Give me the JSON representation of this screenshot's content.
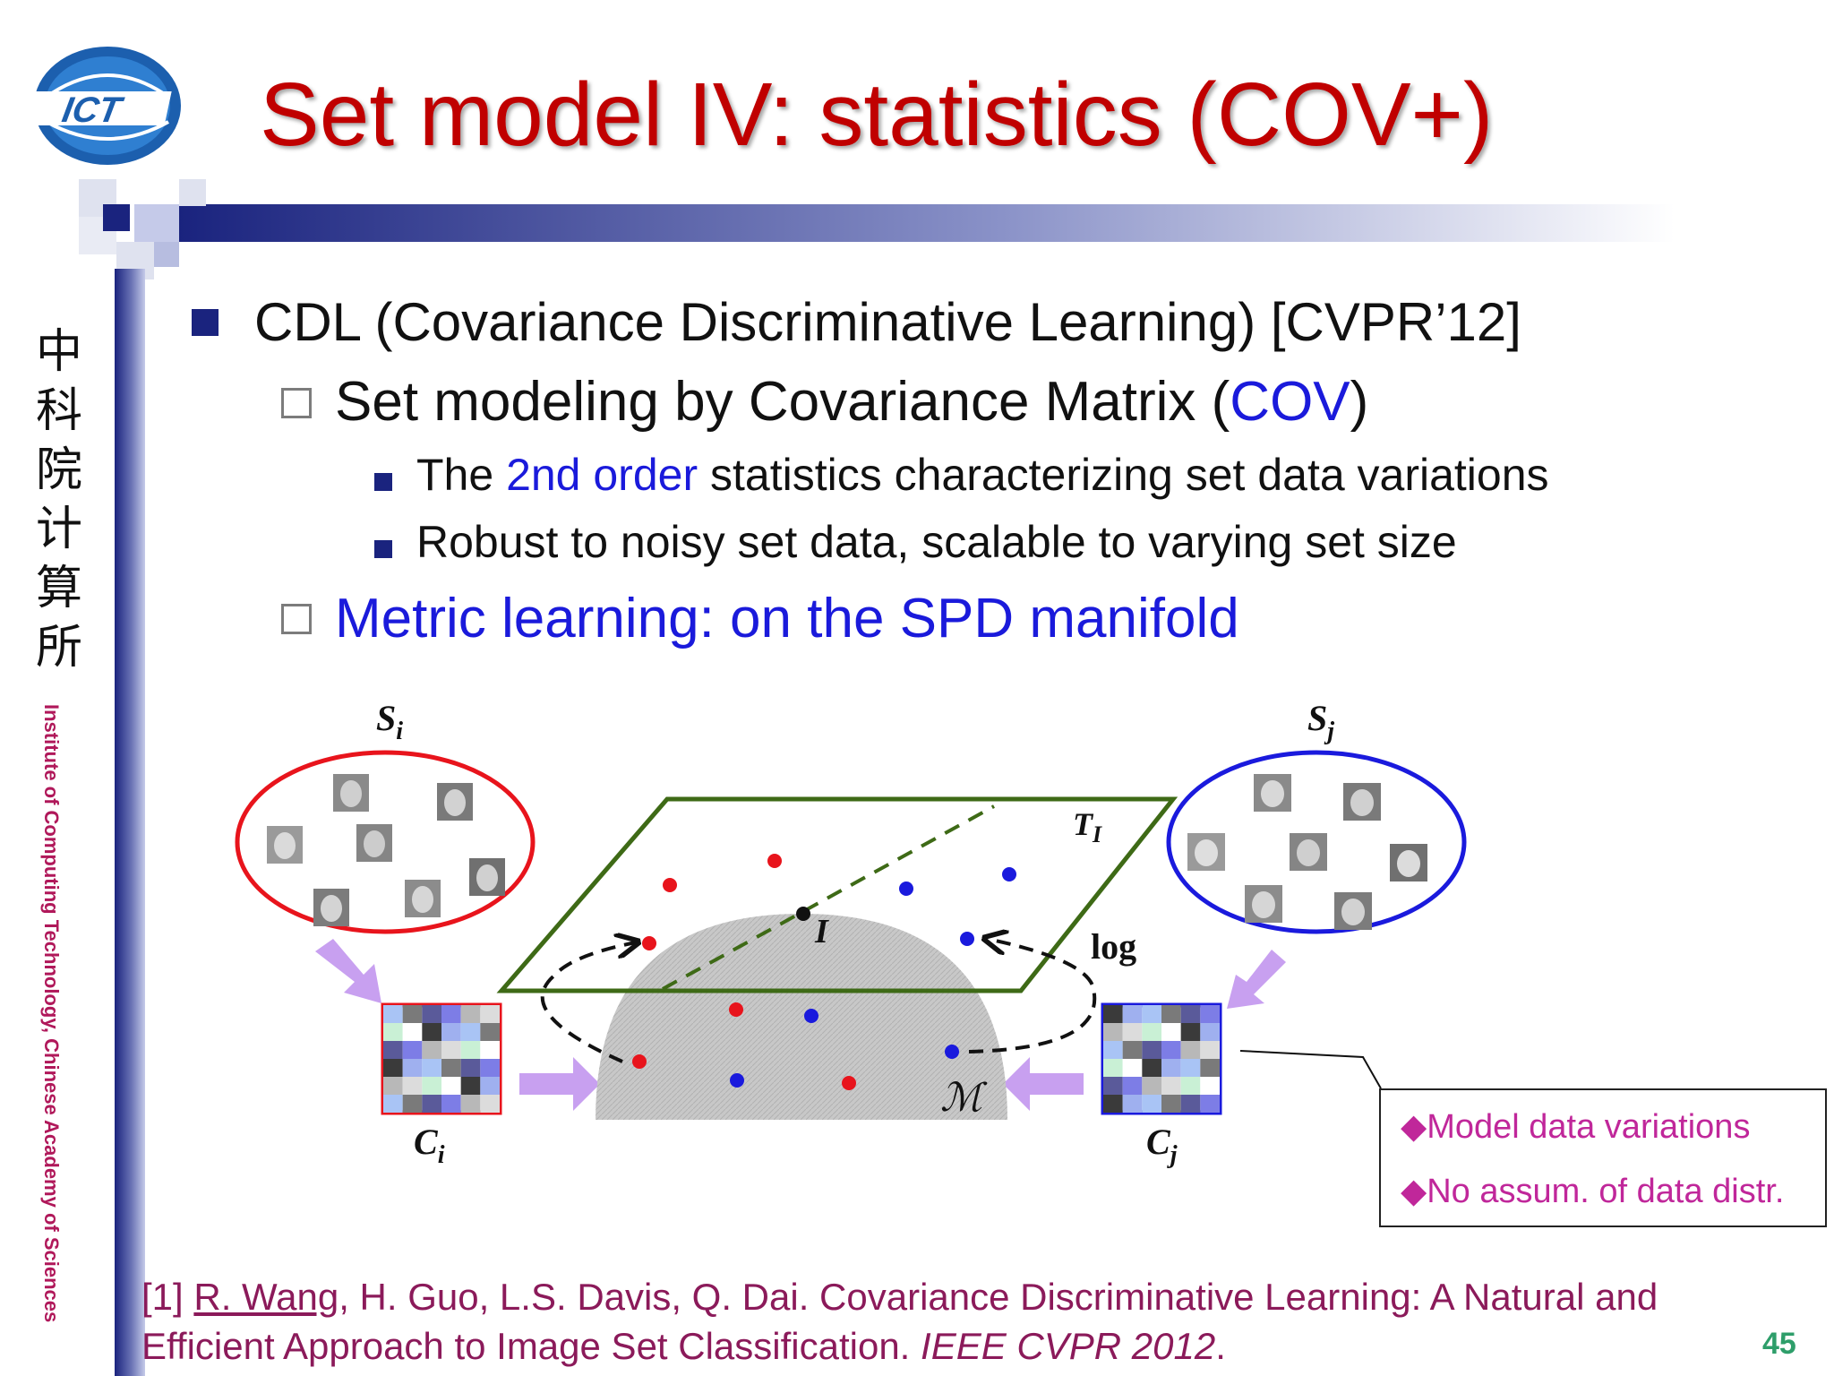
{
  "logo": {
    "text": "ICT",
    "icon": "ict-globe-logo"
  },
  "title": "Set model IV: statistics (COV+)",
  "sidebar": {
    "chinese_chars": [
      "中",
      "科",
      "院",
      "计",
      "算",
      "所"
    ],
    "vertical_text": "Institute of Computing Technology, Chinese Academy of Sciences"
  },
  "bullets": {
    "main": "CDL (Covariance Discriminative Learning) [CVPR’12]",
    "sub1": {
      "pre": "Set modeling by Covariance Matrix (",
      "hl": "COV",
      "post": ")"
    },
    "sub1_items": [
      {
        "pre": "The ",
        "hl": "2nd order",
        "post": " statistics characterizing set data variations"
      },
      {
        "text": "Robust to noisy set data, scalable to varying set size"
      }
    ],
    "sub2": "Metric learning: on the SPD manifold"
  },
  "diagram": {
    "labels": {
      "si": "S",
      "si_sub": "i",
      "sj": "S",
      "sj_sub": "j",
      "ci": "C",
      "ci_sub": "i",
      "cj": "C",
      "cj_sub": "j",
      "tangent": "T",
      "tangent_sub": "I",
      "identity": "I",
      "log": "log",
      "manifold": "ℳ"
    },
    "colors": {
      "red": "#e8141c",
      "blue": "#1a1add",
      "green": "#3e6a16",
      "purple": "#c8a0f0",
      "gray": "#bcbcbc"
    }
  },
  "callout": {
    "items": [
      "Model data variations",
      "No assum. of data distr."
    ],
    "marker_color": "#c0279a"
  },
  "reference": {
    "prefix": "[1] ",
    "author_link": "R. Wang",
    "body": ", H. Guo, L.S. Davis, Q. Dai. Covariance Discriminative Learning: A Natural and Efficient Approach to Image Set Classification. ",
    "venue": "IEEE CVPR 2012",
    "end": "."
  },
  "page_number": "45"
}
